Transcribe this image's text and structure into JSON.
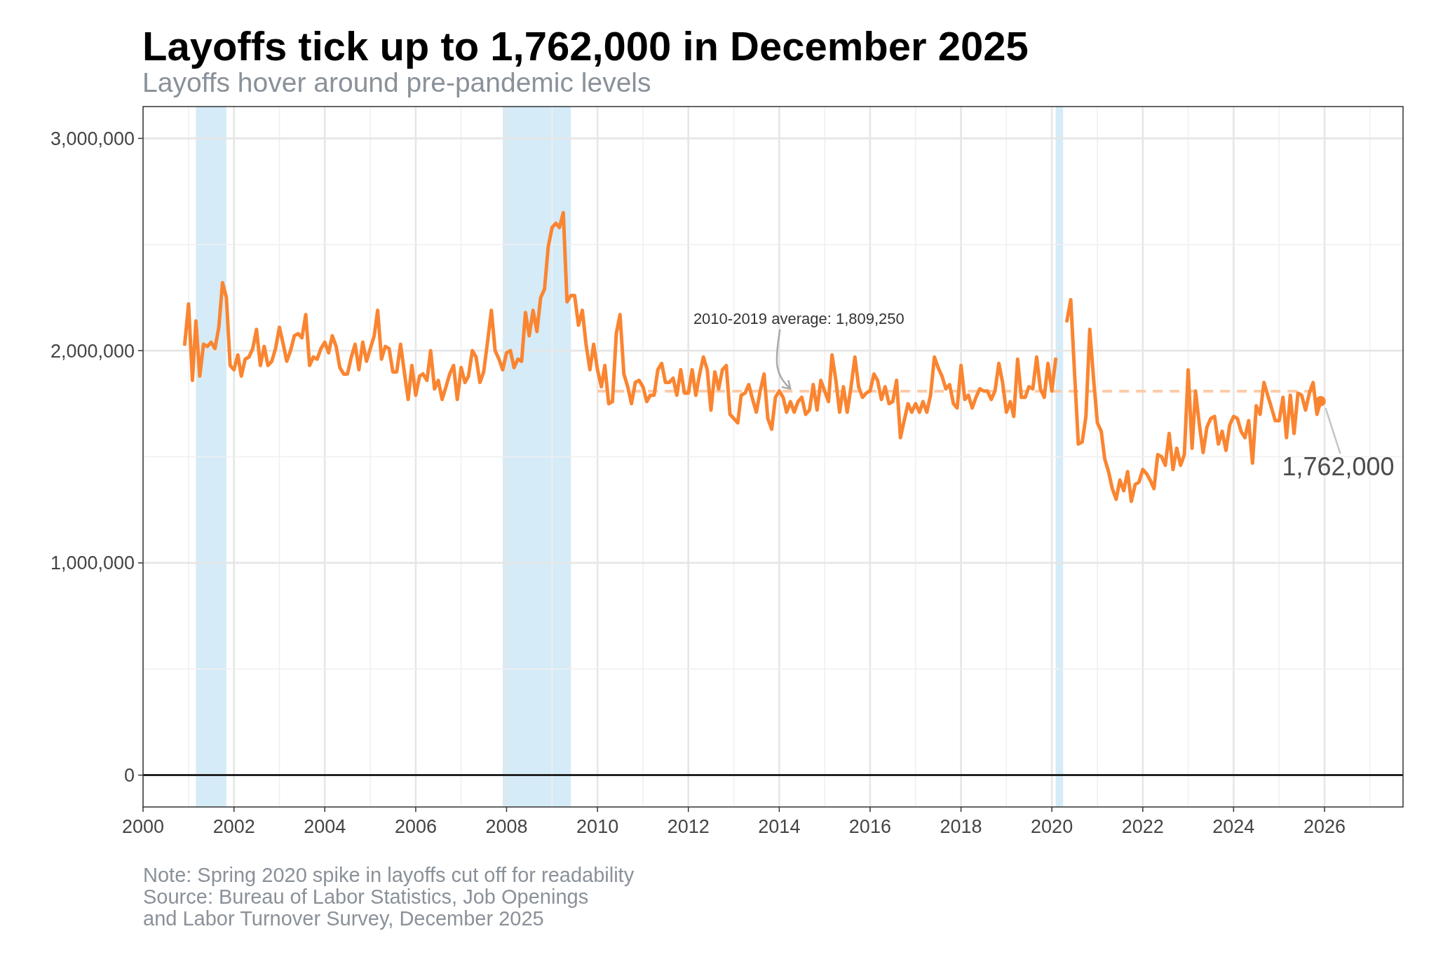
{
  "chart_data": {
    "type": "line",
    "title": "Layoffs tick up to 1,762,000 in December 2025",
    "subtitle": "Layoffs hover around pre-pandemic levels",
    "annotations": [
      {
        "text": "2010-2019 average: 1,809,250",
        "x": "2014-04",
        "y": 1809250
      },
      {
        "text": "1,762,000",
        "x": "2025-12",
        "y": 1762000
      },
      "Note: Spring 2020 spike in layoffs cut off for readability",
      "Source: Bureau of Labor Statistics, Job Openings",
      "and Labor Turnover Survey, December 2025"
    ],
    "xlim": [
      "2000",
      "2027-09-24"
    ],
    "xticks": [
      "2000",
      {
        "value": "2001",
        "label": null
      },
      "2002",
      {
        "value": "2003",
        "label": null
      },
      "2004",
      {
        "value": "2005",
        "label": null
      },
      "2006",
      {
        "value": "2007",
        "label": null
      },
      "2008",
      {
        "value": "2009",
        "label": null
      },
      "2010",
      {
        "value": "2011",
        "label": null
      },
      "2012",
      {
        "value": "2013",
        "label": null
      },
      "2014",
      {
        "value": "2015",
        "label": null
      },
      "2016",
      {
        "value": "2017",
        "label": null
      },
      "2018",
      {
        "value": "2019",
        "label": null
      },
      "2020",
      {
        "value": "2021",
        "label": null
      },
      "2022",
      {
        "value": "2023",
        "label": null
      },
      "2024",
      {
        "value": "2025",
        "label": null
      },
      "2026",
      {
        "value": "2027",
        "label": null
      }
    ],
    "ylim": [
      -150000,
      3150000
    ],
    "yticks": [
      0,
      {
        "value": 500000,
        "label": null
      },
      {
        "value": 1000000,
        "label": "1,000,000"
      },
      {
        "value": 1500000,
        "label": null
      },
      {
        "value": 2000000,
        "label": "2,000,000"
      },
      {
        "value": 2500000,
        "label": null
      },
      {
        "value": 3000000,
        "label": "3,000,000"
      }
    ],
    "grid": true,
    "bands": [
      {
        "axis": "x",
        "from": "2001-03",
        "to": "2001-11",
        "color": "#d5ebf8"
      },
      {
        "axis": "x",
        "from": "2007-12",
        "to": "2009-06",
        "color": "#d5ebf8"
      },
      {
        "axis": "x",
        "from": "2020-02",
        "to": "2020-04",
        "color": "#d5ebf8"
      }
    ],
    "ref_lines": [
      {
        "axis": "y",
        "value": 0,
        "color": "#000000"
      }
    ],
    "series": [
      {
        "type": "line",
        "color": "#fdcba8",
        "line_style": "dashed",
        "x": [
          "2010-01",
          "2025-12"
        ],
        "values": [
          1809250,
          1809250
        ]
      },
      {
        "color": "#fa8531",
        "x": [
          "2000-12",
          "2001-01",
          "2001-02",
          "2001-03",
          "2001-04",
          "2001-05",
          "2001-06",
          "2001-07",
          "2001-08",
          "2001-09",
          "2001-10",
          "2001-11",
          "2001-12",
          "2002-01",
          "2002-02",
          "2002-03",
          "2002-04",
          "2002-05",
          "2002-06",
          "2002-07",
          "2002-08",
          "2002-09",
          "2002-10",
          "2002-11",
          "2002-12",
          "2003-01",
          "2003-02",
          "2003-03",
          "2003-04",
          "2003-05",
          "2003-06",
          "2003-07",
          "2003-08",
          "2003-09",
          "2003-10",
          "2003-11",
          "2003-12",
          "2004-01",
          "2004-02",
          "2004-03",
          "2004-04",
          "2004-05",
          "2004-06",
          "2004-07",
          "2004-08",
          "2004-09",
          "2004-10",
          "2004-11",
          "2004-12",
          "2005-01",
          "2005-02",
          "2005-03",
          "2005-04",
          "2005-05",
          "2005-06",
          "2005-07",
          "2005-08",
          "2005-09",
          "2005-10",
          "2005-11",
          "2005-12",
          "2006-01",
          "2006-02",
          "2006-03",
          "2006-04",
          "2006-05",
          "2006-06",
          "2006-07",
          "2006-08",
          "2006-09",
          "2006-10",
          "2006-11",
          "2006-12",
          "2007-01",
          "2007-02",
          "2007-03",
          "2007-04",
          "2007-05",
          "2007-06",
          "2007-07",
          "2007-08",
          "2007-09",
          "2007-10",
          "2007-11",
          "2007-12",
          "2008-01",
          "2008-02",
          "2008-03",
          "2008-04",
          "2008-05",
          "2008-06",
          "2008-07",
          "2008-08",
          "2008-09",
          "2008-10",
          "2008-11",
          "2008-12",
          "2009-01",
          "2009-02",
          "2009-03",
          "2009-04",
          "2009-05",
          "2009-06",
          "2009-07",
          "2009-08",
          "2009-09",
          "2009-10",
          "2009-11",
          "2009-12",
          "2010-01",
          "2010-02",
          "2010-03",
          "2010-04",
          "2010-05",
          "2010-06",
          "2010-07",
          "2010-08",
          "2010-09",
          "2010-10",
          "2010-11",
          "2010-12",
          "2011-01",
          "2011-02",
          "2011-03",
          "2011-04",
          "2011-05",
          "2011-06",
          "2011-07",
          "2011-08",
          "2011-09",
          "2011-10",
          "2011-11",
          "2011-12",
          "2012-01",
          "2012-02",
          "2012-03",
          "2012-04",
          "2012-05",
          "2012-06",
          "2012-07",
          "2012-08",
          "2012-09",
          "2012-10",
          "2012-11",
          "2012-12",
          "2013-01",
          "2013-02",
          "2013-03",
          "2013-04",
          "2013-05",
          "2013-06",
          "2013-07",
          "2013-08",
          "2013-09",
          "2013-10",
          "2013-11",
          "2013-12",
          "2014-01",
          "2014-02",
          "2014-03",
          "2014-04",
          "2014-05",
          "2014-06",
          "2014-07",
          "2014-08",
          "2014-09",
          "2014-10",
          "2014-11",
          "2014-12",
          "2015-01",
          "2015-02",
          "2015-03",
          "2015-04",
          "2015-05",
          "2015-06",
          "2015-07",
          "2015-08",
          "2015-09",
          "2015-10",
          "2015-11",
          "2015-12",
          "2016-01",
          "2016-02",
          "2016-03",
          "2016-04",
          "2016-05",
          "2016-06",
          "2016-07",
          "2016-08",
          "2016-09",
          "2016-10",
          "2016-11",
          "2016-12",
          "2017-01",
          "2017-02",
          "2017-03",
          "2017-04",
          "2017-05",
          "2017-06",
          "2017-07",
          "2017-08",
          "2017-09",
          "2017-10",
          "2017-11",
          "2017-12",
          "2018-01",
          "2018-02",
          "2018-03",
          "2018-04",
          "2018-05",
          "2018-06",
          "2018-07",
          "2018-08",
          "2018-09",
          "2018-10",
          "2018-11",
          "2018-12",
          "2019-01",
          "2019-02",
          "2019-03",
          "2019-04",
          "2019-05",
          "2019-06",
          "2019-07",
          "2019-08",
          "2019-09",
          "2019-10",
          "2019-11",
          "2019-12",
          "2020-01",
          "2020-02",
          "2020-03",
          "2020-04",
          "2020-05",
          "2020-06",
          "2020-07",
          "2020-08",
          "2020-09",
          "2020-10",
          "2020-11",
          "2020-12",
          "2021-01",
          "2021-02",
          "2021-03",
          "2021-04",
          "2021-05",
          "2021-06",
          "2021-07",
          "2021-08",
          "2021-09",
          "2021-10",
          "2021-11",
          "2021-12",
          "2022-01",
          "2022-02",
          "2022-03",
          "2022-04",
          "2022-05",
          "2022-06",
          "2022-07",
          "2022-08",
          "2022-09",
          "2022-10",
          "2022-11",
          "2022-12",
          "2023-01",
          "2023-02",
          "2023-03",
          "2023-04",
          "2023-05",
          "2023-06",
          "2023-07",
          "2023-08",
          "2023-09",
          "2023-10",
          "2023-11",
          "2023-12",
          "2024-01",
          "2024-02",
          "2024-03",
          "2024-04",
          "2024-05",
          "2024-06",
          "2024-07",
          "2024-08",
          "2024-09",
          "2024-10",
          "2024-11",
          "2024-12",
          "2025-01",
          "2025-02",
          "2025-03",
          "2025-04",
          "2025-05",
          "2025-06",
          "2025-07",
          "2025-08",
          "2025-09",
          "2025-10",
          "2025-11",
          "2025-12"
        ],
        "values": [
          2030000,
          2220000,
          1860000,
          2140000,
          1880000,
          2030000,
          2020000,
          2040000,
          2010000,
          2110000,
          2320000,
          2250000,
          1930000,
          1910000,
          1980000,
          1880000,
          1960000,
          1970000,
          2010000,
          2100000,
          1930000,
          2020000,
          1930000,
          1950000,
          2010000,
          2110000,
          2030000,
          1950000,
          2000000,
          2070000,
          2080000,
          2060000,
          2170000,
          1930000,
          1970000,
          1960000,
          2010000,
          2040000,
          1990000,
          2070000,
          2020000,
          1920000,
          1890000,
          1890000,
          1970000,
          2030000,
          1910000,
          2040000,
          1950000,
          2010000,
          2070000,
          2190000,
          1960000,
          2020000,
          2010000,
          1900000,
          1900000,
          2030000,
          1900000,
          1770000,
          1930000,
          1790000,
          1880000,
          1890000,
          1860000,
          2000000,
          1820000,
          1860000,
          1770000,
          1830000,
          1890000,
          1930000,
          1770000,
          1920000,
          1850000,
          1880000,
          2000000,
          1970000,
          1850000,
          1900000,
          2040000,
          2190000,
          2000000,
          1960000,
          1910000,
          1990000,
          2000000,
          1920000,
          1960000,
          1950000,
          2180000,
          2070000,
          2190000,
          2090000,
          2250000,
          2290000,
          2490000,
          2580000,
          2600000,
          2580000,
          2650000,
          2230000,
          2260000,
          2260000,
          2120000,
          2190000,
          2030000,
          1910000,
          2030000,
          1910000,
          1830000,
          1930000,
          1750000,
          1760000,
          2080000,
          2170000,
          1890000,
          1830000,
          1750000,
          1850000,
          1860000,
          1830000,
          1760000,
          1790000,
          1790000,
          1910000,
          1940000,
          1850000,
          1850000,
          1870000,
          1790000,
          1910000,
          1800000,
          1800000,
          1910000,
          1790000,
          1890000,
          1970000,
          1910000,
          1720000,
          1900000,
          1820000,
          1910000,
          1930000,
          1700000,
          1680000,
          1660000,
          1790000,
          1800000,
          1840000,
          1770000,
          1710000,
          1810000,
          1890000,
          1680000,
          1630000,
          1780000,
          1810000,
          1780000,
          1710000,
          1760000,
          1710000,
          1760000,
          1780000,
          1700000,
          1720000,
          1840000,
          1720000,
          1860000,
          1810000,
          1760000,
          1980000,
          1860000,
          1710000,
          1830000,
          1710000,
          1830000,
          1970000,
          1830000,
          1780000,
          1800000,
          1810000,
          1890000,
          1860000,
          1770000,
          1830000,
          1750000,
          1760000,
          1860000,
          1590000,
          1670000,
          1750000,
          1710000,
          1750000,
          1710000,
          1760000,
          1710000,
          1790000,
          1970000,
          1920000,
          1880000,
          1820000,
          1840000,
          1750000,
          1730000,
          1930000,
          1770000,
          1790000,
          1730000,
          1780000,
          1820000,
          1810000,
          1810000,
          1770000,
          1810000,
          1940000,
          1850000,
          1710000,
          1760000,
          1690000,
          1960000,
          1780000,
          1780000,
          1830000,
          1820000,
          1970000,
          1820000,
          1780000,
          1940000,
          1810000,
          1960000,
          null,
          null,
          2140000,
          2240000,
          1900000,
          1560000,
          1570000,
          1690000,
          2100000,
          1870000,
          1660000,
          1620000,
          1490000,
          1430000,
          1350000,
          1300000,
          1390000,
          1340000,
          1430000,
          1290000,
          1370000,
          1380000,
          1440000,
          1420000,
          1390000,
          1350000,
          1510000,
          1500000,
          1460000,
          1610000,
          1440000,
          1540000,
          1460000,
          1510000,
          1910000,
          1540000,
          1810000,
          1650000,
          1520000,
          1640000,
          1680000,
          1690000,
          1560000,
          1620000,
          1530000,
          1650000,
          1690000,
          1680000,
          1620000,
          1590000,
          1670000,
          1470000,
          1740000,
          1700000,
          1850000,
          1790000,
          1730000,
          1670000,
          1670000,
          1780000,
          1590000,
          1790000,
          1610000,
          1800000,
          1790000,
          1720000,
          1800000,
          1850000,
          1700000,
          1762000
        ]
      },
      {
        "type": "scatter",
        "color": "#fa8531",
        "marker": "circle",
        "x": [
          "2025-12"
        ],
        "values": [
          1762000
        ]
      }
    ]
  }
}
